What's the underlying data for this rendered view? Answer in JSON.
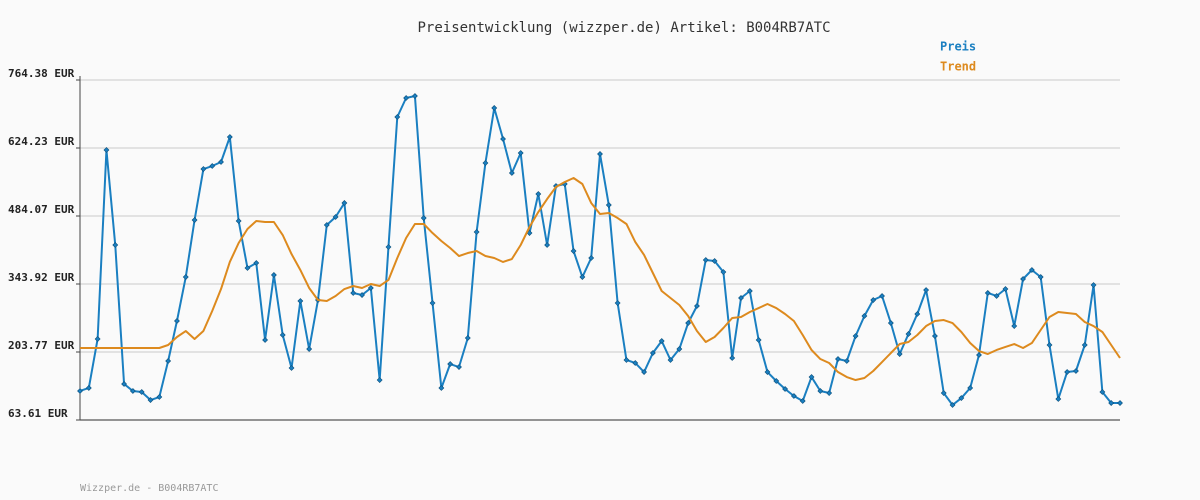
{
  "chart_data": {
    "type": "line",
    "title": "Preisentwicklung (wizzper.de) Artikel: B004RB7ATC",
    "ylim": [
      63.61,
      764.38
    ],
    "yticks": [
      {
        "value": 63.61,
        "label": "63.61 EUR"
      },
      {
        "value": 203.77,
        "label": "203.77 EUR"
      },
      {
        "value": 343.92,
        "label": "343.92 EUR"
      },
      {
        "value": 484.07,
        "label": "484.07 EUR"
      },
      {
        "value": 624.23,
        "label": "624.23 EUR"
      },
      {
        "value": 764.38,
        "label": "764.38 EUR"
      }
    ],
    "grid": true,
    "legend": "top-right",
    "series": [
      {
        "name": "Preis",
        "color": "#1a7fc1",
        "markers": true,
        "values": [
          123.4,
          129.6,
          230.6,
          620.1,
          424.3,
          137.8,
          123.4,
          121.3,
          104.8,
          111.0,
          185.2,
          267.7,
          358.3,
          475.8,
          580.9,
          587.1,
          595.4,
          646.9,
          473.8,
          376.9,
          387.2,
          228.5,
          362.5,
          238.8,
          170.8,
          308.9,
          209.9,
          310.9,
          465.5,
          482.0,
          510.9,
          325.4,
          321.2,
          335.7,
          146.0,
          420.2,
          688.1,
          727.3,
          731.4,
          479.9,
          304.7,
          129.6,
          179.0,
          172.8,
          232.6,
          451.1,
          593.3,
          706.7,
          642.8,
          572.7,
          613.9,
          449.0,
          529.4,
          424.3,
          545.9,
          550.0,
          411.9,
          358.3,
          397.5,
          611.9,
          506.7,
          304.7,
          187.3,
          181.1,
          162.5,
          201.7,
          226.4,
          187.3,
          209.9,
          263.5,
          298.6,
          393.4,
          391.3,
          368.6,
          191.4,
          315.1,
          329.5,
          228.5,
          162.5,
          144.0,
          127.5,
          113.1,
          102.8,
          152.2,
          123.4,
          119.2,
          189.3,
          185.2,
          236.7,
          278.0,
          310.9,
          319.2,
          263.5,
          199.6,
          240.9,
          282.1,
          331.5,
          236.7,
          119.2,
          94.5,
          108.9,
          129.6,
          197.6,
          325.4,
          319.2,
          333.6,
          257.3,
          354.2,
          372.8,
          358.3,
          218.2,
          106.9,
          162.5,
          164.6,
          218.2,
          341.8,
          121.3,
          98.6,
          98.6
        ]
      },
      {
        "name": "Trend",
        "color": "#dd8a1e",
        "markers": false,
        "values": [
          212.0,
          212.0,
          212.0,
          212.0,
          212.0,
          212.0,
          212.0,
          212.0,
          212.0,
          212.0,
          218.2,
          234.7,
          247.0,
          230.6,
          247.0,
          288.3,
          333.6,
          389.3,
          428.4,
          457.3,
          473.8,
          471.7,
          471.7,
          444.9,
          405.7,
          372.8,
          335.7,
          310.9,
          308.9,
          319.2,
          333.6,
          339.8,
          335.7,
          343.9,
          339.8,
          352.2,
          397.5,
          438.7,
          467.6,
          467.6,
          449.0,
          432.5,
          418.1,
          401.6,
          407.8,
          411.9,
          401.6,
          397.5,
          389.3,
          395.4,
          424.3,
          461.4,
          492.3,
          519.1,
          543.8,
          554.1,
          562.4,
          550.0,
          510.9,
          488.2,
          490.2,
          479.9,
          467.6,
          430.5,
          403.7,
          366.6,
          329.5,
          315.1,
          300.6,
          278.0,
          247.0,
          224.4,
          234.7,
          253.2,
          273.8,
          275.9,
          286.2,
          294.4,
          302.7,
          294.4,
          282.1,
          267.7,
          238.8,
          207.9,
          189.3,
          181.1,
          162.5,
          152.2,
          146.0,
          150.2,
          164.6,
          183.1,
          201.7,
          220.2,
          224.4,
          238.8,
          257.3,
          267.7,
          269.7,
          263.5,
          245.0,
          222.3,
          205.8,
          199.6,
          207.9,
          214.1,
          220.2,
          212.0,
          222.3,
          249.1,
          275.9,
          286.2,
          284.1,
          282.1,
          265.6,
          257.3,
          245.0,
          218.2,
          191.4
        ]
      }
    ],
    "footer": "Wizzper.de - B004RB7ATC"
  }
}
